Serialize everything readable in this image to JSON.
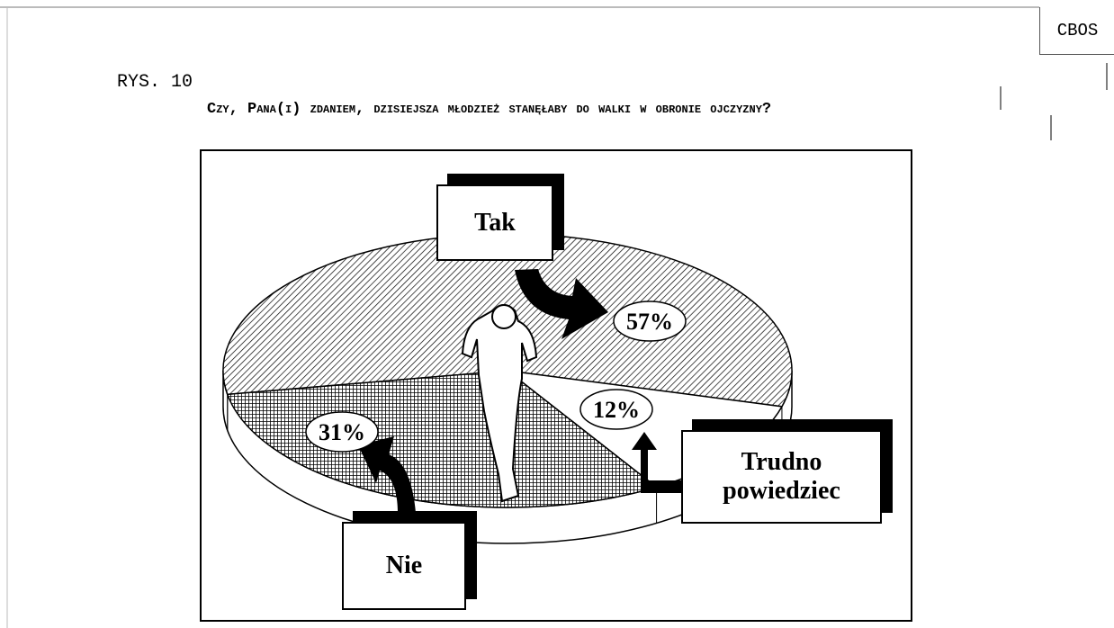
{
  "source": "CBOS",
  "figure": "RYS. 10",
  "chart_data": {
    "type": "pie",
    "title": "Czy, Pana(i) zdaniem, dzisiejsza młodzież stanęłaby do walki w obronie ojczyzny?",
    "categories": [
      "Tak",
      "Trudno powiedziec",
      "Nie"
    ],
    "values": [
      57,
      12,
      31
    ],
    "value_labels": [
      "57%",
      "12%",
      "31%"
    ]
  }
}
